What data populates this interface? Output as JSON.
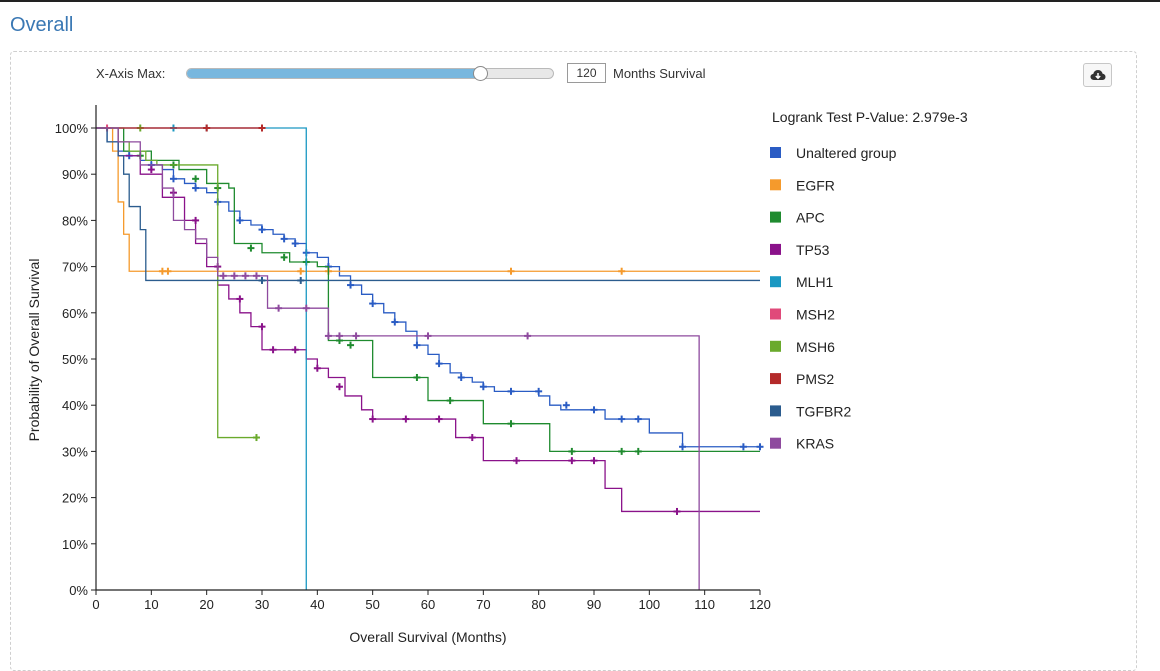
{
  "section_title": "Overall",
  "controls": {
    "xmax_label": "X-Axis Max:",
    "xmax_value": "120",
    "xmax_unit": "Months Survival",
    "slider_fraction": 0.8
  },
  "icons": {
    "download": "cloud-download-icon"
  },
  "chart_data": {
    "type": "line",
    "step": true,
    "title": "",
    "xlabel": "Overall Survival (Months)",
    "ylabel": "Probability of Overall Survival",
    "xlim": [
      0,
      120
    ],
    "ylim": [
      0,
      100
    ],
    "xticks": [
      0,
      10,
      20,
      30,
      40,
      50,
      60,
      70,
      80,
      90,
      100,
      110,
      120
    ],
    "yticks": [
      "0%",
      "10%",
      "20%",
      "30%",
      "40%",
      "50%",
      "60%",
      "70%",
      "80%",
      "90%",
      "100%"
    ],
    "grid": false,
    "legend_placement": "right",
    "pvalue_text": "Logrank Test P-Value: 2.979e-3",
    "series": [
      {
        "name": "Unaltered group",
        "color": "#2a5cc4",
        "x": [
          0,
          2,
          4,
          6,
          8,
          10,
          12,
          14,
          16,
          18,
          20,
          22,
          24,
          26,
          28,
          30,
          32,
          34,
          36,
          38,
          40,
          42,
          44,
          46,
          48,
          50,
          52,
          54,
          56,
          58,
          60,
          62,
          64,
          66,
          68,
          70,
          72,
          74,
          76,
          78,
          80,
          82,
          84,
          86,
          88,
          90,
          92,
          94,
          96,
          98,
          100,
          102,
          104,
          106,
          108,
          110,
          112,
          114,
          116,
          118,
          120
        ],
        "y": [
          100,
          97,
          95,
          94,
          93,
          92,
          91,
          89,
          88,
          87,
          86,
          84,
          82,
          80,
          79,
          78,
          77,
          76,
          75,
          73,
          72,
          70,
          68,
          66,
          64,
          62,
          60,
          58,
          56,
          53,
          51,
          49,
          47,
          46,
          45,
          44,
          43,
          43,
          43,
          43,
          42,
          40,
          39,
          39,
          39,
          39,
          37,
          37,
          37,
          37,
          34,
          34,
          34,
          31,
          31,
          31,
          31,
          31,
          31,
          31,
          31
        ],
        "censor_x": [
          6,
          10,
          14,
          18,
          22,
          26,
          30,
          34,
          36,
          38,
          42,
          46,
          50,
          54,
          58,
          62,
          66,
          70,
          75,
          80,
          85,
          90,
          95,
          98,
          106,
          117,
          120
        ],
        "censor_y": [
          94,
          92,
          89,
          87,
          84,
          80,
          78,
          76,
          75,
          73,
          70,
          66,
          62,
          58,
          53,
          49,
          46,
          44,
          43,
          43,
          40,
          39,
          37,
          37,
          31,
          31,
          31
        ]
      },
      {
        "name": "EGFR",
        "color": "#f59a2c",
        "x": [
          0,
          3,
          4,
          5,
          6,
          40,
          120
        ],
        "y": [
          100,
          95,
          84,
          77,
          69,
          69,
          69
        ],
        "censor_x": [
          12,
          13,
          37,
          42,
          75,
          95
        ],
        "censor_y": [
          69,
          69,
          69,
          69,
          69,
          69
        ]
      },
      {
        "name": "APC",
        "color": "#1f8b2f",
        "x": [
          0,
          5,
          10,
          15,
          20,
          24,
          25,
          30,
          35,
          40,
          42,
          50,
          60,
          70,
          80,
          82,
          90,
          100,
          110,
          120
        ],
        "y": [
          100,
          95,
          93,
          91,
          88,
          87,
          75,
          73,
          71,
          70,
          54,
          46,
          41,
          36,
          36,
          30,
          30,
          30,
          30,
          30
        ],
        "censor_x": [
          8,
          14,
          18,
          22,
          28,
          34,
          38,
          44,
          46,
          58,
          64,
          75,
          86,
          95,
          98
        ],
        "censor_y": [
          94,
          92,
          89,
          87,
          74,
          72,
          71,
          54,
          53,
          46,
          41,
          36,
          30,
          30,
          30
        ]
      },
      {
        "name": "TP53",
        "color": "#8a128a",
        "x": [
          0,
          4,
          8,
          12,
          16,
          18,
          20,
          22,
          24,
          26,
          28,
          30,
          32,
          35,
          38,
          40,
          42,
          45,
          48,
          50,
          55,
          60,
          65,
          70,
          75,
          80,
          85,
          90,
          92,
          95,
          100,
          105,
          110,
          120
        ],
        "y": [
          100,
          94,
          90,
          85,
          80,
          75,
          70,
          66,
          63,
          60,
          57,
          52,
          52,
          52,
          50,
          48,
          46,
          42,
          39,
          37,
          37,
          37,
          33,
          28,
          28,
          28,
          28,
          28,
          22,
          17,
          17,
          17,
          17,
          17
        ],
        "censor_x": [
          10,
          14,
          18,
          22,
          26,
          30,
          32,
          36,
          40,
          44,
          50,
          56,
          62,
          68,
          76,
          86,
          90,
          105
        ],
        "censor_y": [
          91,
          86,
          80,
          70,
          63,
          57,
          52,
          52,
          48,
          44,
          37,
          37,
          37,
          33,
          28,
          28,
          28,
          17
        ],
        "censor_alt": true
      },
      {
        "name": "MLH1",
        "color": "#1a98c2",
        "x": [
          0,
          38,
          38
        ],
        "y": [
          100,
          100,
          0
        ],
        "censor_x": [
          14,
          20
        ],
        "censor_y": [
          100,
          100
        ]
      },
      {
        "name": "MSH2",
        "color": "#e04a7a",
        "x": [
          0,
          30
        ],
        "y": [
          100,
          100
        ],
        "censor_x": [
          2
        ],
        "censor_y": [
          100
        ]
      },
      {
        "name": "MSH6",
        "color": "#6aaa2c",
        "x": [
          0,
          4,
          6,
          9,
          11,
          22,
          22,
          29
        ],
        "y": [
          100,
          97,
          95,
          93,
          92,
          62,
          33,
          33
        ],
        "censor_x": [
          8,
          29
        ],
        "censor_y": [
          100,
          33
        ]
      },
      {
        "name": "PMS2",
        "color": "#b42a2a",
        "x": [
          0,
          30
        ],
        "y": [
          100,
          100
        ],
        "censor_x": [
          20,
          30
        ],
        "censor_y": [
          100,
          100
        ]
      },
      {
        "name": "TGFBR2",
        "color": "#2b5c8e",
        "x": [
          0,
          2,
          4,
          5,
          6,
          8,
          9,
          10,
          120
        ],
        "y": [
          100,
          97,
          94,
          90,
          83,
          78,
          67,
          67,
          67
        ],
        "censor_x": [
          30,
          37
        ],
        "censor_y": [
          67,
          67
        ]
      },
      {
        "name": "KRAS",
        "color": "#8e4a9e",
        "x": [
          0,
          4,
          8,
          12,
          14,
          16,
          18,
          20,
          22,
          25,
          30,
          31,
          35,
          40,
          42,
          45,
          50,
          60,
          70,
          80,
          90,
          100,
          108,
          109,
          109
        ],
        "y": [
          100,
          97,
          92,
          87,
          80,
          78,
          76,
          72,
          68,
          68,
          68,
          61,
          61,
          61,
          55,
          55,
          55,
          55,
          55,
          55,
          55,
          55,
          55,
          55,
          0
        ],
        "censor_x": [
          23,
          25,
          27,
          29,
          33,
          38,
          42,
          44,
          47,
          60,
          78
        ],
        "censor_y": [
          68,
          68,
          68,
          68,
          61,
          61,
          55,
          55,
          55,
          55,
          55
        ]
      }
    ]
  }
}
